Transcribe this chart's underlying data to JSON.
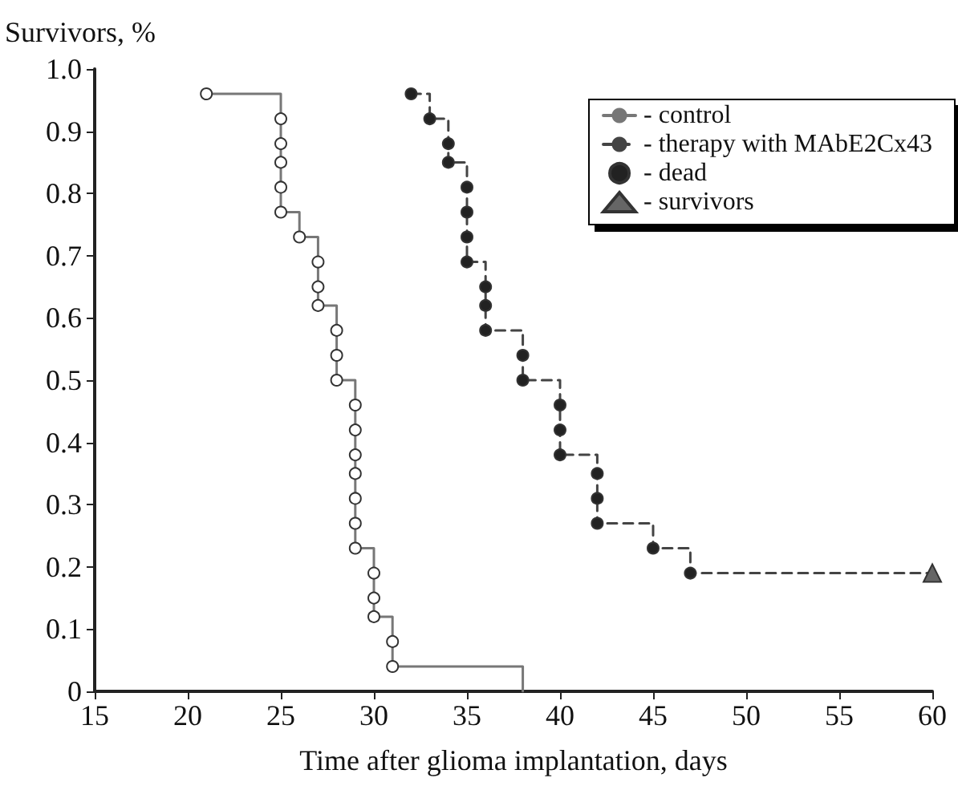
{
  "chart_data": {
    "type": "step",
    "xlabel": "Time after glioma implantation, days",
    "ylabel": "Survivors, %",
    "xlim": [
      15,
      60
    ],
    "xticks": [
      15,
      20,
      25,
      30,
      35,
      40,
      45,
      50,
      55,
      60
    ],
    "ylim": [
      0,
      1
    ],
    "yticks": [
      0,
      0.1,
      0.2,
      0.3,
      0.4,
      0.5,
      0.6,
      0.7,
      0.8,
      0.9,
      {
        "value": 1,
        "label": "1.0"
      }
    ],
    "grid": false,
    "legend": "top right",
    "series": [
      {
        "name": "- control",
        "color": "#777777",
        "line_style": "solid",
        "marker": "none",
        "x": [
          21,
          25,
          25,
          25,
          25,
          25,
          26,
          27,
          27,
          27,
          28,
          28,
          28,
          29,
          29,
          29,
          29,
          29,
          29,
          29,
          30,
          30,
          30,
          31,
          31,
          38
        ],
        "values": [
          0.96,
          0.92,
          0.88,
          0.85,
          0.81,
          0.77,
          0.73,
          0.69,
          0.65,
          0.62,
          0.58,
          0.54,
          0.5,
          0.46,
          0.42,
          0.38,
          0.35,
          0.31,
          0.27,
          0.23,
          0.19,
          0.15,
          0.12,
          0.08,
          0.04,
          0
        ]
      },
      {
        "name": "- therapy with MAbE2Cx43",
        "color": "#444444",
        "line_style": "dashed",
        "marker": "none",
        "x": [
          32,
          33,
          34,
          34,
          35,
          35,
          35,
          35,
          36,
          36,
          36,
          38,
          38,
          40,
          40,
          40,
          42,
          42,
          42,
          45,
          47,
          60
        ],
        "values": [
          0.96,
          0.92,
          0.88,
          0.85,
          0.81,
          0.77,
          0.73,
          0.69,
          0.65,
          0.62,
          0.58,
          0.54,
          0.5,
          0.46,
          0.42,
          0.38,
          0.35,
          0.31,
          0.27,
          0.23,
          0.19,
          0.19
        ]
      },
      {
        "name": "- dead",
        "type": "scatter",
        "color": "#222222",
        "marker": "circle",
        "x": [
          32,
          33,
          34,
          34,
          35,
          35,
          35,
          35,
          36,
          36,
          36,
          38,
          38,
          40,
          40,
          40,
          42,
          42,
          42,
          45,
          47
        ],
        "values": [
          0.96,
          0.92,
          0.88,
          0.85,
          0.81,
          0.77,
          0.73,
          0.69,
          0.65,
          0.62,
          0.58,
          0.54,
          0.5,
          0.46,
          0.42,
          0.38,
          0.35,
          0.31,
          0.27,
          0.23,
          0.19
        ]
      },
      {
        "type": "scatter",
        "color": "#ffffff",
        "marker": "circle",
        "x": [
          21,
          25,
          25,
          25,
          25,
          25,
          26,
          27,
          27,
          27,
          28,
          28,
          28,
          29,
          29,
          29,
          29,
          29,
          29,
          29,
          30,
          30,
          30,
          31,
          31
        ],
        "values": [
          0.96,
          0.92,
          0.88,
          0.85,
          0.81,
          0.77,
          0.73,
          0.69,
          0.65,
          0.62,
          0.58,
          0.54,
          0.5,
          0.46,
          0.42,
          0.38,
          0.35,
          0.31,
          0.27,
          0.23,
          0.19,
          0.15,
          0.12,
          0.08,
          0.04
        ]
      },
      {
        "name": "- survivors",
        "type": "scatter",
        "color": "#666666",
        "marker": "triangle",
        "x": [
          60
        ],
        "values": [
          0.19
        ]
      }
    ]
  }
}
